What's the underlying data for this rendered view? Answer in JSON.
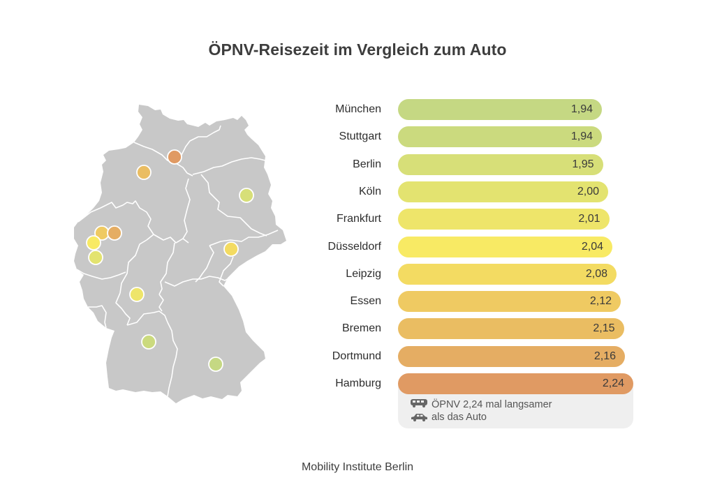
{
  "title": "ÖPNV-Reisezeit im Vergleich zum Auto",
  "footer": "Mobility Institute Berlin",
  "legend": {
    "line1": "ÖPNV 2,24 mal langsamer",
    "line2": "als das Auto",
    "icon1": "bus-icon",
    "icon2": "car-icon"
  },
  "colors": {
    "map_fill": "#c8c8c8",
    "map_border": "#ffffff",
    "legend_bg": "#efefef"
  },
  "chart_data": {
    "type": "bar",
    "orientation": "horizontal",
    "title": "ÖPNV-Reisezeit im Vergleich zum Auto",
    "xlabel": "",
    "ylabel": "",
    "categories": [
      "München",
      "Stuttgart",
      "Berlin",
      "Köln",
      "Frankfurt",
      "Düsseldorf",
      "Leipzig",
      "Essen",
      "Bremen",
      "Dortmund",
      "Hamburg"
    ],
    "values": [
      1.94,
      1.94,
      1.95,
      2.0,
      2.01,
      2.04,
      2.08,
      2.12,
      2.15,
      2.16,
      2.24
    ],
    "value_labels": [
      "1,94",
      "1,94",
      "1,95",
      "2,00",
      "2,01",
      "2,04",
      "2,08",
      "2,12",
      "2,15",
      "2,16",
      "2,24"
    ],
    "bar_colors": [
      "#c5d883",
      "#cbda7e",
      "#d7df78",
      "#e3e370",
      "#eee56a",
      "#f8ea64",
      "#f3db62",
      "#efca62",
      "#eabd62",
      "#e5ad63",
      "#e09a63"
    ],
    "grid": false,
    "legend": "bottom-right"
  },
  "map": {
    "region": "Germany",
    "cities": [
      {
        "name": "Hamburg",
        "color": "#e09a63"
      },
      {
        "name": "Bremen",
        "color": "#eabd62"
      },
      {
        "name": "Berlin",
        "color": "#d7df78"
      },
      {
        "name": "Essen",
        "color": "#efca62"
      },
      {
        "name": "Dortmund",
        "color": "#e5ad63"
      },
      {
        "name": "Düsseldorf",
        "color": "#f8ea64"
      },
      {
        "name": "Köln",
        "color": "#e3e370"
      },
      {
        "name": "Leipzig",
        "color": "#f3db62"
      },
      {
        "name": "Frankfurt",
        "color": "#eee56a"
      },
      {
        "name": "Stuttgart",
        "color": "#cbda7e"
      },
      {
        "name": "München",
        "color": "#c5d883"
      }
    ]
  }
}
